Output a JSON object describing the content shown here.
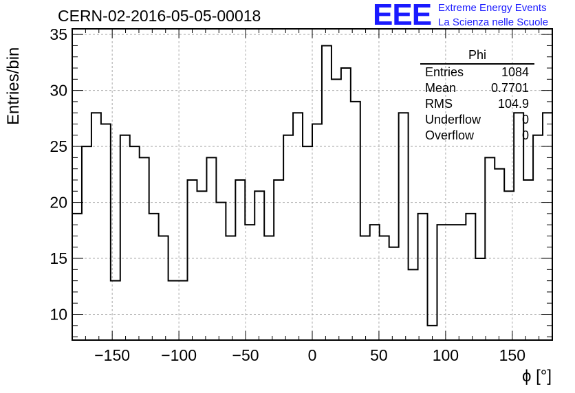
{
  "header": {
    "title": "CERN-02-2016-05-05-00018",
    "logo_mark": "EEE",
    "logo_line1": "Extreme Energy Events",
    "logo_line2": "La Scienza nelle Scuole"
  },
  "stats_box": {
    "name": "Phi",
    "rows": [
      {
        "label": "Entries",
        "value": "1084"
      },
      {
        "label": "Mean",
        "value": "0.7701"
      },
      {
        "label": "RMS",
        "value": "104.9"
      },
      {
        "label": "Underflow",
        "value": "0"
      },
      {
        "label": "Overflow",
        "value": "0"
      }
    ]
  },
  "chart_data": {
    "type": "bar",
    "subtype": "histogram-step",
    "title": "CERN-02-2016-05-05-00018",
    "xlabel": "ϕ [°]",
    "ylabel": "Entries/bin",
    "xlim": [
      -180,
      180
    ],
    "ylim": [
      7.7,
      35.5
    ],
    "bin_width": 7.2,
    "x_ticks": [
      -150,
      -100,
      -50,
      0,
      50,
      100,
      150
    ],
    "y_ticks": [
      10,
      15,
      20,
      25,
      30,
      35
    ],
    "grid": true,
    "bin_edges_start": -180,
    "values": [
      19,
      25,
      28,
      27,
      13,
      26,
      25,
      24,
      19,
      17,
      13,
      13,
      22,
      21,
      24,
      20,
      17,
      22,
      18,
      21,
      17,
      22,
      26,
      28,
      25,
      27,
      34,
      31,
      32,
      29,
      17,
      18,
      17,
      16,
      28,
      14,
      19,
      9,
      18,
      18,
      18,
      19,
      15,
      24,
      23,
      21,
      28,
      22,
      26,
      28
    ]
  }
}
